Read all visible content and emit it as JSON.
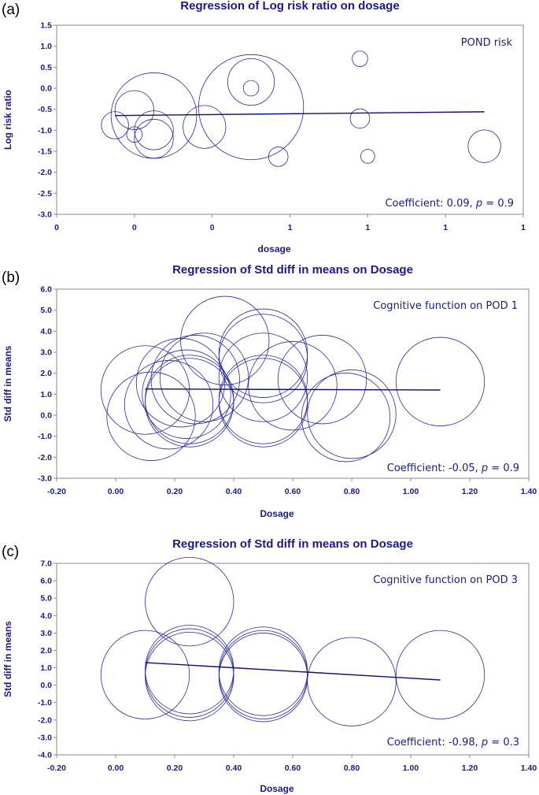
{
  "colors": {
    "ink": "#1a1a80",
    "bubble": "#2a2a9a",
    "frame": "#888888"
  },
  "chart_data": [
    {
      "panel_label": "(a)",
      "type": "scatter",
      "title": "Regression of Log risk ratio on dosage",
      "xlabel": "dosage",
      "ylabel": "Log risk ratio",
      "annotation": "POND risk",
      "coefficient_text": "Coefficient: 0.09, ",
      "p_symbol": "p",
      "p_text": " = 0.9",
      "xlim": [
        0,
        1.2
      ],
      "ylim": [
        -3.0,
        1.5
      ],
      "x_ticks": [
        0,
        0.2,
        0.4,
        0.6,
        0.8,
        1.0,
        1.2
      ],
      "x_tick_labels": [
        "0",
        "0",
        "0",
        "1",
        "1",
        "1",
        "1"
      ],
      "y_ticks": [
        -3.0,
        -2.5,
        -2.0,
        -1.5,
        -1.0,
        -0.5,
        0.0,
        0.5,
        1.0,
        1.5
      ],
      "y_tick_labels": [
        "-3.0",
        "-2.5",
        "-2.0",
        "-1.5",
        "-1.0",
        "-0.5",
        "0.0",
        "0.5",
        "1.0",
        "1.5"
      ],
      "regression_line": {
        "x": [
          0.15,
          1.1
        ],
        "y": [
          -0.65,
          -0.56
        ]
      },
      "points": [
        {
          "x": 0.15,
          "y": -0.88,
          "size": 0.035
        },
        {
          "x": 0.2,
          "y": -0.52,
          "size": 0.05
        },
        {
          "x": 0.2,
          "y": -1.1,
          "size": 0.02
        },
        {
          "x": 0.25,
          "y": -0.65,
          "size": 0.11
        },
        {
          "x": 0.25,
          "y": -1.0,
          "size": 0.05
        },
        {
          "x": 0.25,
          "y": -1.2,
          "size": 0.05
        },
        {
          "x": 0.38,
          "y": -0.92,
          "size": 0.055
        },
        {
          "x": 0.5,
          "y": 0.15,
          "size": 0.06
        },
        {
          "x": 0.5,
          "y": 0.0,
          "size": 0.02
        },
        {
          "x": 0.5,
          "y": -0.45,
          "size": 0.135
        },
        {
          "x": 0.57,
          "y": -1.63,
          "size": 0.025
        },
        {
          "x": 0.78,
          "y": 0.7,
          "size": 0.02
        },
        {
          "x": 0.78,
          "y": -0.72,
          "size": 0.025
        },
        {
          "x": 0.8,
          "y": -1.62,
          "size": 0.018
        },
        {
          "x": 1.1,
          "y": -1.38,
          "size": 0.042
        }
      ]
    },
    {
      "panel_label": "(b)",
      "type": "scatter",
      "title": "Regression of Std diff in means on Dosage",
      "xlabel": "Dosage",
      "ylabel": "Std diff in means",
      "annotation": "Cognitive function on POD 1",
      "coefficient_text": "Coefficient: -0.05, ",
      "p_symbol": "p",
      "p_text": " = 0.9",
      "xlim": [
        -0.2,
        1.4
      ],
      "ylim": [
        -3.0,
        6.0
      ],
      "x_ticks": [
        -0.2,
        0.0,
        0.2,
        0.4,
        0.6,
        0.8,
        1.0,
        1.2,
        1.4
      ],
      "x_tick_labels": [
        "-0.20",
        "0.00",
        "0.20",
        "0.40",
        "0.60",
        "0.80",
        "1.00",
        "1.20",
        "1.40"
      ],
      "y_ticks": [
        -3.0,
        -2.0,
        -1.0,
        0.0,
        1.0,
        2.0,
        3.0,
        4.0,
        5.0,
        6.0
      ],
      "y_tick_labels": [
        "-3.0",
        "-2.0",
        "-1.0",
        "0.0",
        "1.0",
        "2.0",
        "3.0",
        "4.0",
        "5.0",
        "6.0"
      ],
      "regression_line": {
        "x": [
          0.1,
          1.1
        ],
        "y": [
          1.25,
          1.2
        ]
      },
      "points": [
        {
          "x": 0.1,
          "y": 1.2,
          "size": 0.15
        },
        {
          "x": 0.12,
          "y": -0.05,
          "size": 0.15
        },
        {
          "x": 0.18,
          "y": 0.5,
          "size": 0.15
        },
        {
          "x": 0.22,
          "y": 1.55,
          "size": 0.15
        },
        {
          "x": 0.24,
          "y": 1.0,
          "size": 0.15
        },
        {
          "x": 0.25,
          "y": 0.75,
          "size": 0.15
        },
        {
          "x": 0.25,
          "y": 0.6,
          "size": 0.15
        },
        {
          "x": 0.27,
          "y": 1.7,
          "size": 0.15
        },
        {
          "x": 0.3,
          "y": 1.8,
          "size": 0.15
        },
        {
          "x": 0.37,
          "y": 3.55,
          "size": 0.15
        },
        {
          "x": 0.5,
          "y": 2.95,
          "size": 0.15
        },
        {
          "x": 0.5,
          "y": 2.7,
          "size": 0.15
        },
        {
          "x": 0.5,
          "y": 1.8,
          "size": 0.15
        },
        {
          "x": 0.5,
          "y": 0.75,
          "size": 0.15
        },
        {
          "x": 0.5,
          "y": 0.6,
          "size": 0.15
        },
        {
          "x": 0.6,
          "y": 1.4,
          "size": 0.15
        },
        {
          "x": 0.7,
          "y": 1.7,
          "size": 0.15
        },
        {
          "x": 0.78,
          "y": -0.1,
          "size": 0.15
        },
        {
          "x": 0.8,
          "y": 0.05,
          "size": 0.15
        },
        {
          "x": 1.1,
          "y": 1.6,
          "size": 0.15
        }
      ]
    },
    {
      "panel_label": "(c)",
      "type": "scatter",
      "title": "Regression of Std diff in means on Dosage",
      "xlabel": "Dosage",
      "ylabel": "Std diff in means",
      "annotation": "Cognitive function on POD 3",
      "coefficient_text": "Coefficient: -0.98, ",
      "p_symbol": "p",
      "p_text": " = 0.3",
      "xlim": [
        -0.2,
        1.4
      ],
      "ylim": [
        -4.0,
        7.0
      ],
      "x_ticks": [
        -0.2,
        0.0,
        0.2,
        0.4,
        0.6,
        0.8,
        1.0,
        1.2,
        1.4
      ],
      "x_tick_labels": [
        "-0.20",
        "0.00",
        "0.20",
        "0.40",
        "0.60",
        "0.80",
        "1.00",
        "1.20",
        "1.40"
      ],
      "y_ticks": [
        -4.0,
        -3.0,
        -2.0,
        -1.0,
        0.0,
        1.0,
        2.0,
        3.0,
        4.0,
        5.0,
        6.0,
        7.0
      ],
      "y_tick_labels": [
        "-4.0",
        "-3.0",
        "-2.0",
        "-1.0",
        "0.0",
        "1.0",
        "2.0",
        "3.0",
        "4.0",
        "5.0",
        "6.0",
        "7.0"
      ],
      "regression_line": {
        "x": [
          0.1,
          1.1
        ],
        "y": [
          1.3,
          0.3
        ]
      },
      "points": [
        {
          "x": 0.1,
          "y": 0.6,
          "size": 0.15
        },
        {
          "x": 0.25,
          "y": 4.8,
          "size": 0.15
        },
        {
          "x": 0.25,
          "y": 0.9,
          "size": 0.15
        },
        {
          "x": 0.25,
          "y": 0.7,
          "size": 0.15
        },
        {
          "x": 0.25,
          "y": 0.5,
          "size": 0.15
        },
        {
          "x": 0.5,
          "y": 0.8,
          "size": 0.15
        },
        {
          "x": 0.5,
          "y": 0.6,
          "size": 0.15
        },
        {
          "x": 0.5,
          "y": 0.45,
          "size": 0.15
        },
        {
          "x": 0.8,
          "y": 0.2,
          "size": 0.15
        },
        {
          "x": 1.1,
          "y": 0.6,
          "size": 0.15
        }
      ]
    }
  ]
}
